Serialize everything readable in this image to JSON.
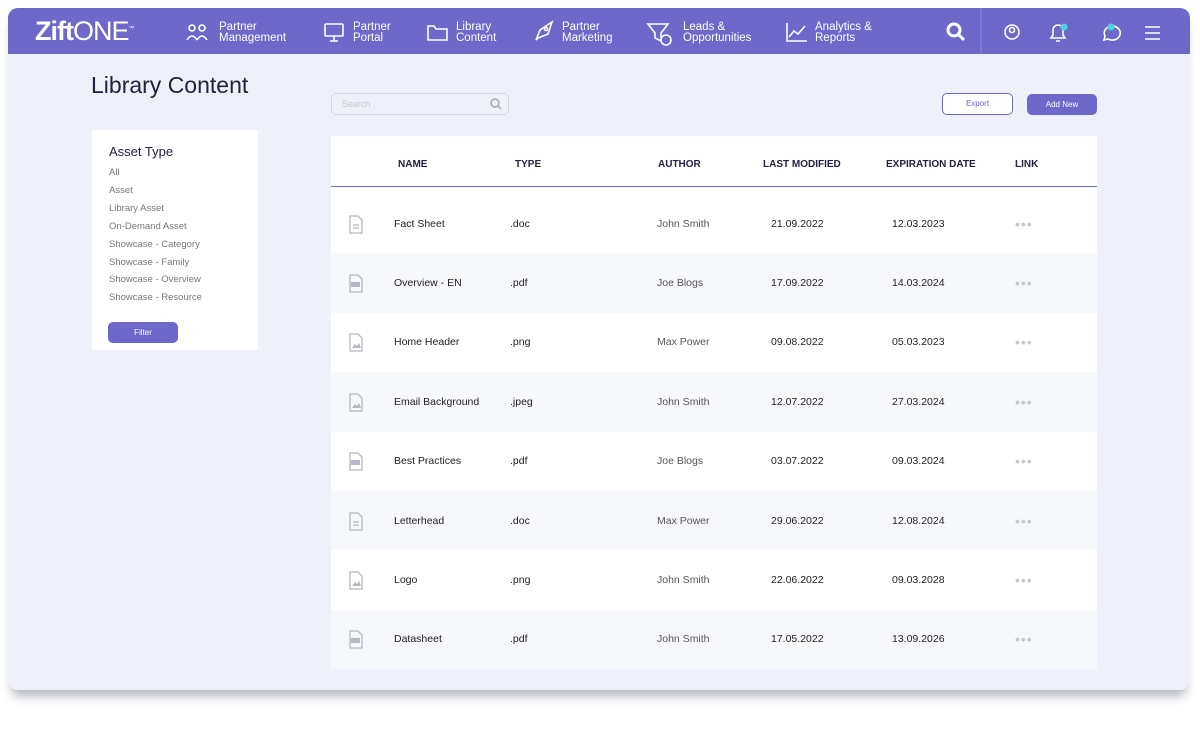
{
  "nav": {
    "logo": {
      "bold": "Zift",
      "light": "ONE",
      "mark": "™"
    },
    "items": [
      {
        "lines": [
          "Partner",
          "Management"
        ]
      },
      {
        "lines": [
          "Partner",
          "Portal"
        ]
      },
      {
        "lines": [
          "Library",
          "Content"
        ]
      },
      {
        "lines": [
          "Partner",
          "Marketing"
        ]
      },
      {
        "lines": [
          "Leads &",
          "Opportunities"
        ]
      },
      {
        "lines": [
          "Analytics &",
          "Reports"
        ]
      }
    ]
  },
  "page": {
    "title": "Library Content",
    "search_placeholder": "Search",
    "export": "Export",
    "add_new": "Add New"
  },
  "filter": {
    "title": "Asset Type",
    "options": [
      "All",
      "Asset",
      "Library Asset",
      "On-Demand Asset",
      "Showcase - Category",
      "Showcase - Family",
      "Showcase - Overview",
      "Showcase - Resource"
    ],
    "button": "Filter"
  },
  "table": {
    "columns": [
      "NAME",
      "TYPE",
      "AUTHOR",
      "LAST MODIFIED",
      "EXPIRATION DATE",
      "LINK"
    ],
    "rows": [
      [
        "Fact Sheet",
        ".doc",
        "John Smith",
        "21.09.2022",
        "12.03.2023"
      ],
      [
        "Overview - EN",
        ".pdf",
        "Joe Blogs",
        "17.09.2022",
        "14.03.2024"
      ],
      [
        "Home Header",
        ".png",
        "Max Power",
        "09.08.2022",
        "05.03.2023"
      ],
      [
        "Email Background",
        ".jpeg",
        "John Smith",
        "12.07.2022",
        "27.03.2024"
      ],
      [
        "Best Practices",
        ".pdf",
        "Joe Blogs",
        "03.07.2022",
        "09.03.2024"
      ],
      [
        "Letterhead",
        ".doc",
        "Max Power",
        "29.06.2022",
        "12.08.2024"
      ],
      [
        "Logo",
        ".png",
        "John Smith",
        "22.06.2022",
        "09.03.2028"
      ],
      [
        "Datasheet",
        ".pdf",
        "John Smith",
        "17.05.2022",
        "13.09.2026"
      ]
    ]
  }
}
